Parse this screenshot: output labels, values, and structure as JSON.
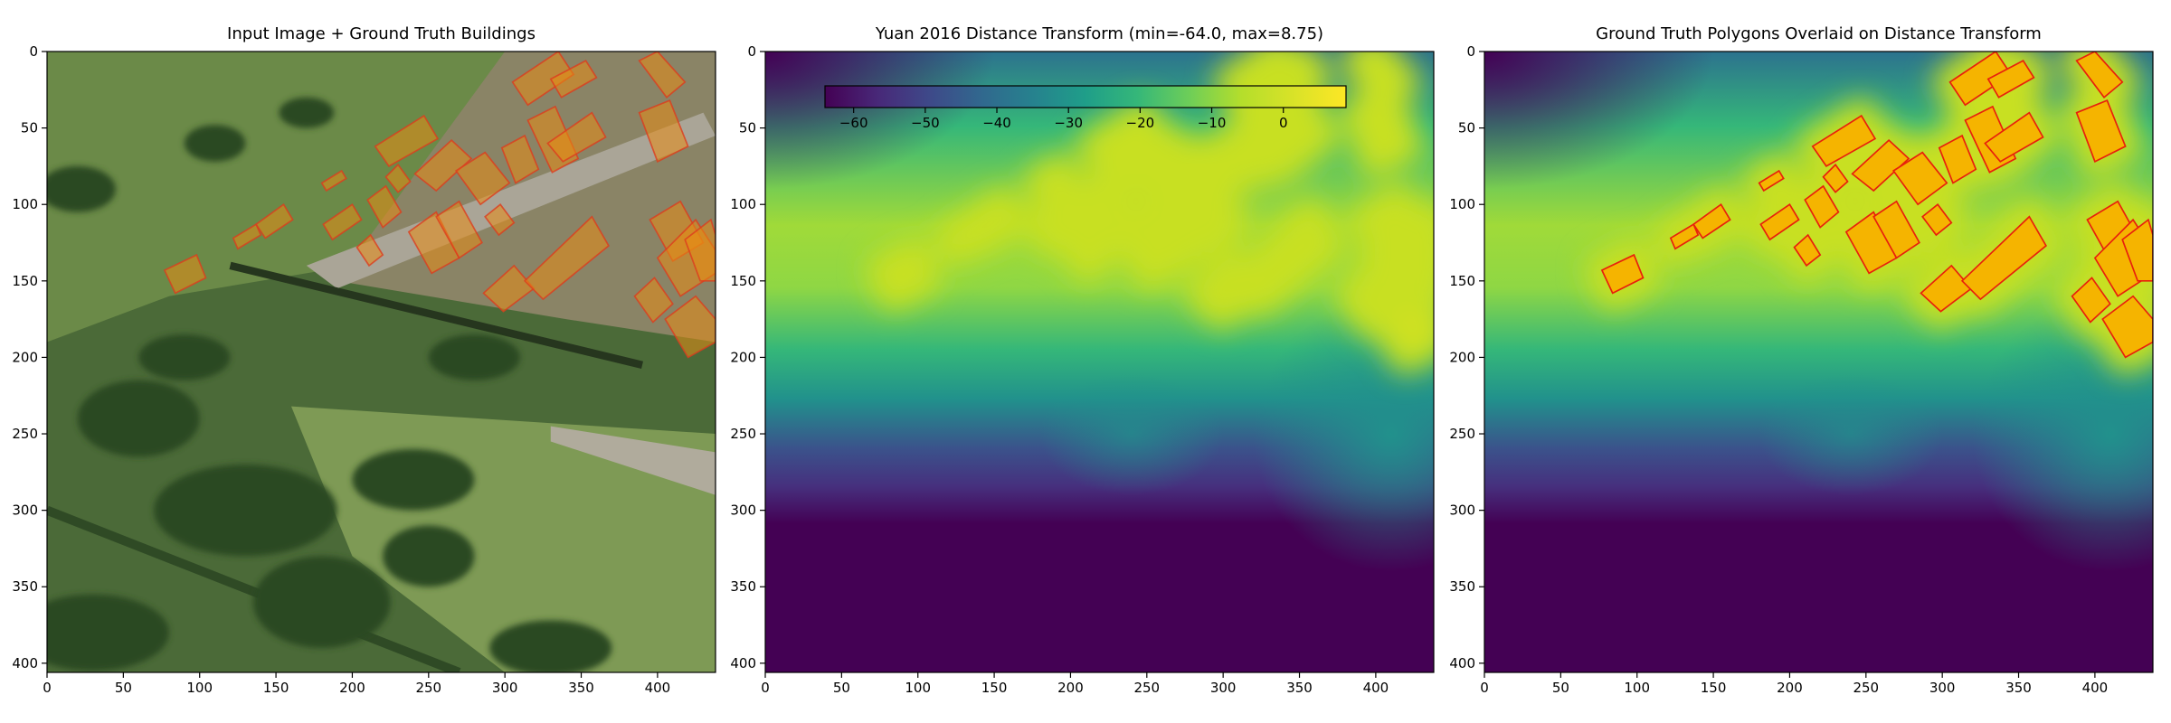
{
  "chart_data": [
    {
      "type": "image",
      "title": "Input Image + Ground Truth Buildings",
      "xlim": [
        0,
        438
      ],
      "ylim": [
        406,
        0
      ],
      "xticks": [
        0,
        50,
        100,
        150,
        200,
        250,
        300,
        350,
        400
      ],
      "yticks": [
        0,
        50,
        100,
        150,
        200,
        250,
        300,
        350,
        400
      ]
    },
    {
      "type": "image",
      "title": "Yuan 2016 Distance Transform (min=-64.0, max=8.75)",
      "xlim": [
        0,
        438
      ],
      "ylim": [
        406,
        0
      ],
      "xticks": [
        0,
        50,
        100,
        150,
        200,
        250,
        300,
        350,
        400
      ],
      "yticks": [
        0,
        50,
        100,
        150,
        200,
        250,
        300,
        350,
        400
      ],
      "colorbar": {
        "lim": [
          -64,
          8.75
        ],
        "colormap": "viridis",
        "ticks": [
          {
            "value": -60,
            "label": "−60"
          },
          {
            "value": -50,
            "label": "−50"
          },
          {
            "value": -40,
            "label": "−40"
          },
          {
            "value": -30,
            "label": "−30"
          },
          {
            "value": -20,
            "label": "−20"
          },
          {
            "value": -10,
            "label": "−10"
          },
          0
        ]
      }
    },
    {
      "type": "image",
      "title": "Ground Truth Polygons Overlaid on Distance Transform",
      "xlim": [
        0,
        438
      ],
      "ylim": [
        406,
        0
      ],
      "xticks": [
        0,
        50,
        100,
        150,
        200,
        250,
        300,
        350,
        400
      ],
      "yticks": [
        0,
        50,
        100,
        150,
        200,
        250,
        300,
        350,
        400
      ]
    }
  ]
}
